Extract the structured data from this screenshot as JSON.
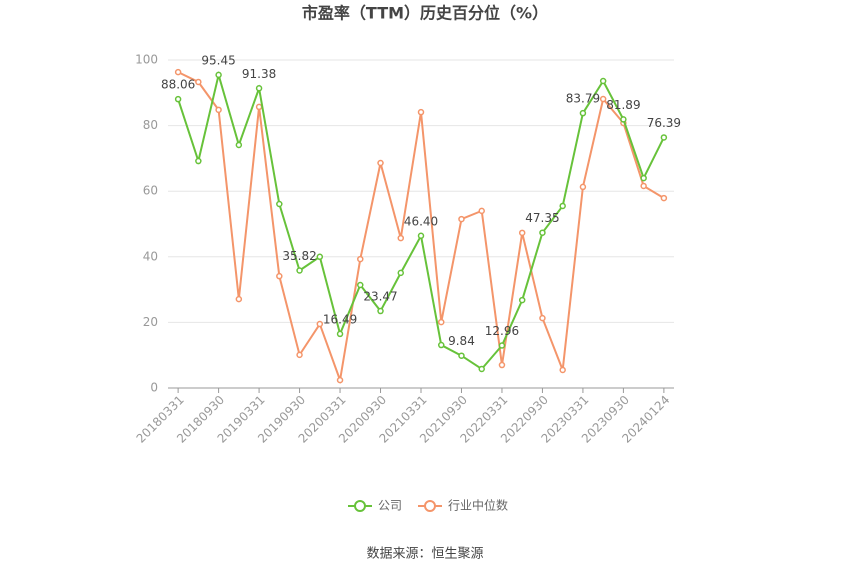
{
  "chart_data": {
    "type": "line",
    "title": "市盈率（TTM）历史百分位（%）",
    "source": "数据来源：恒生聚源",
    "categories": [
      "20180331",
      null,
      "20180930",
      null,
      "20190331",
      null,
      "20190930",
      null,
      "20200331",
      null,
      "20200930",
      null,
      "20210331",
      null,
      "20210930",
      null,
      "20220331",
      null,
      "20220930",
      null,
      "20230331",
      null,
      "20230930",
      null,
      "20240124"
    ],
    "series": [
      {
        "name": "公司",
        "color": "#67c23a",
        "values": [
          88.06,
          69.2,
          95.45,
          74.1,
          91.38,
          56.1,
          35.82,
          40.0,
          16.49,
          31.4,
          23.47,
          35.1,
          46.4,
          13.1,
          9.84,
          5.8,
          12.96,
          26.8,
          47.35,
          55.5,
          83.79,
          93.6,
          81.89,
          64.0,
          76.39
        ],
        "value_labels": [
          "88.06",
          null,
          "95.45",
          null,
          "91.38",
          null,
          "35.82",
          null,
          "16.49",
          null,
          "23.47",
          null,
          "46.40",
          null,
          "9.84",
          null,
          "12.96",
          null,
          "47.35",
          null,
          "83.79",
          null,
          "81.89",
          null,
          "76.39"
        ]
      },
      {
        "name": "行业中位数",
        "color": "#f4956a",
        "values": [
          96.3,
          93.3,
          84.8,
          27.1,
          85.7,
          34.1,
          10.1,
          19.5,
          2.4,
          39.3,
          68.6,
          45.7,
          84.1,
          20.1,
          51.5,
          54.0,
          7.0,
          47.3,
          21.3,
          5.5,
          61.3,
          88.1,
          80.8,
          61.6,
          57.9
        ]
      }
    ],
    "ylim": [
      0,
      100
    ],
    "yticks": [
      0,
      20,
      40,
      60,
      80,
      100
    ],
    "grid": true,
    "legend": "bottom"
  }
}
